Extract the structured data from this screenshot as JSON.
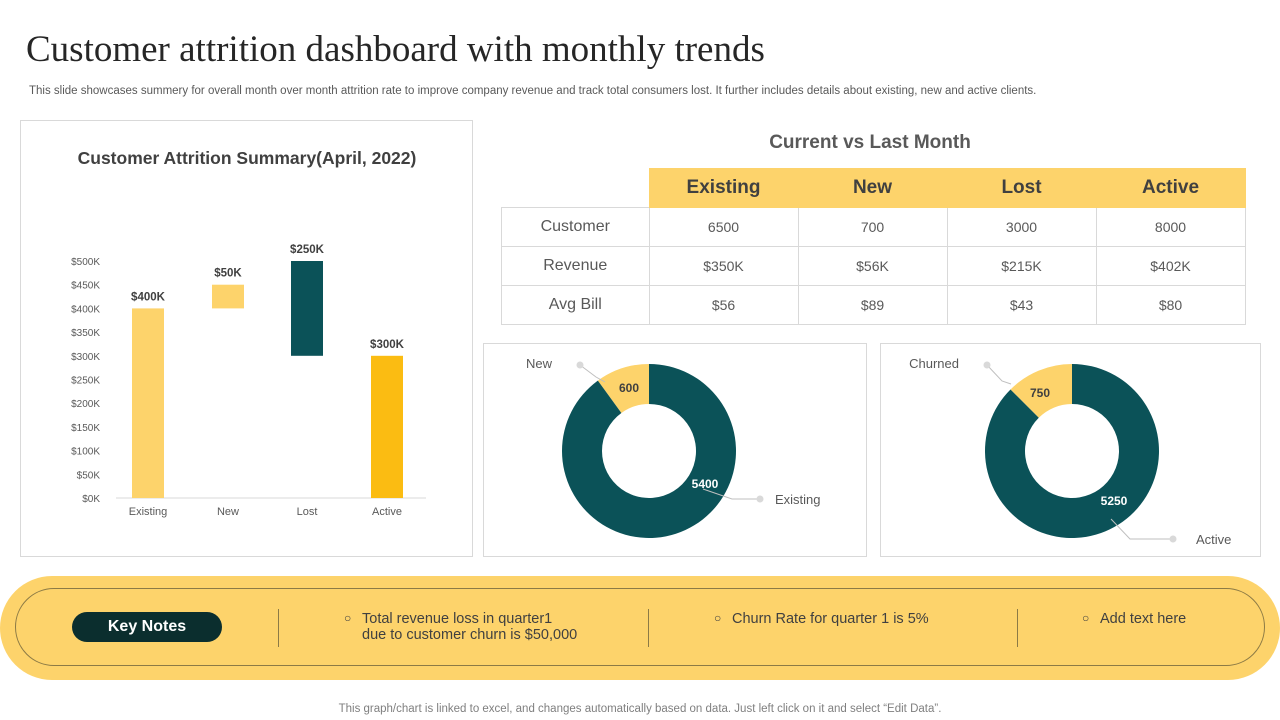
{
  "title": "Customer attrition dashboard with monthly trends",
  "subtitle": "This slide showcases summery for overall month over month attrition rate to improve company revenue and track total consumers lost. It further includes details about existing, new and active clients.",
  "chart_data": [
    {
      "type": "bar",
      "subtype": "waterfall",
      "title": "Customer Attrition Summary(April, 2022)",
      "categories": [
        "Existing",
        "New",
        "Lost",
        "Active"
      ],
      "bases": [
        0,
        400,
        300,
        0
      ],
      "tops": [
        400,
        450,
        500,
        300
      ],
      "values": [
        400,
        50,
        250,
        300
      ],
      "data_labels": [
        "$400K",
        "$50K",
        "$250K",
        "$300K"
      ],
      "colors": [
        "#fdd36b",
        "#fdd36b",
        "#0b5258",
        "#fbbc12"
      ],
      "ylim": [
        0,
        500
      ],
      "yticks": [
        0,
        50,
        100,
        150,
        200,
        250,
        300,
        350,
        400,
        450,
        500
      ],
      "ytick_labels": [
        "$0K",
        "$50K",
        "$100K",
        "$150K",
        "$200K",
        "$250K",
        "$300K",
        "$350K",
        "$400K",
        "$450K",
        "$500K"
      ],
      "xlabel": "",
      "ylabel": ""
    },
    {
      "type": "pie",
      "subtype": "donut",
      "labels": [
        "New",
        "Existing"
      ],
      "values": [
        600,
        5400
      ],
      "colors": [
        "#fdd36b",
        "#0b5258"
      ]
    },
    {
      "type": "pie",
      "subtype": "donut",
      "labels": [
        "Churned",
        "Active"
      ],
      "values": [
        750,
        5250
      ],
      "colors": [
        "#fdd36b",
        "#0b5258"
      ]
    }
  ],
  "table": {
    "title": "Current vs Last Month",
    "headers": [
      "Existing",
      "New",
      "Lost",
      "Active"
    ],
    "rows": [
      {
        "label": "Customer",
        "cells": [
          "6500",
          "700",
          "3000",
          "8000"
        ]
      },
      {
        "label": "Revenue",
        "cells": [
          "$350K",
          "$56K",
          "$215K",
          "$402K"
        ]
      },
      {
        "label": "Avg Bill",
        "cells": [
          "$56",
          "$89",
          "$43",
          "$80"
        ]
      }
    ]
  },
  "keynotes": {
    "label": "Key Notes",
    "notes": [
      {
        "line1": "Total revenue loss in quarter1",
        "line2": "due to customer churn is $50,000"
      },
      {
        "line1": "Churn Rate for quarter 1 is 5%",
        "line2": ""
      },
      {
        "line1": "Add text here",
        "line2": ""
      }
    ],
    "bullet": "○"
  },
  "footer": "This graph/chart is linked to excel,  and changes automatically based on data. Just left click on it and select “Edit Data”."
}
